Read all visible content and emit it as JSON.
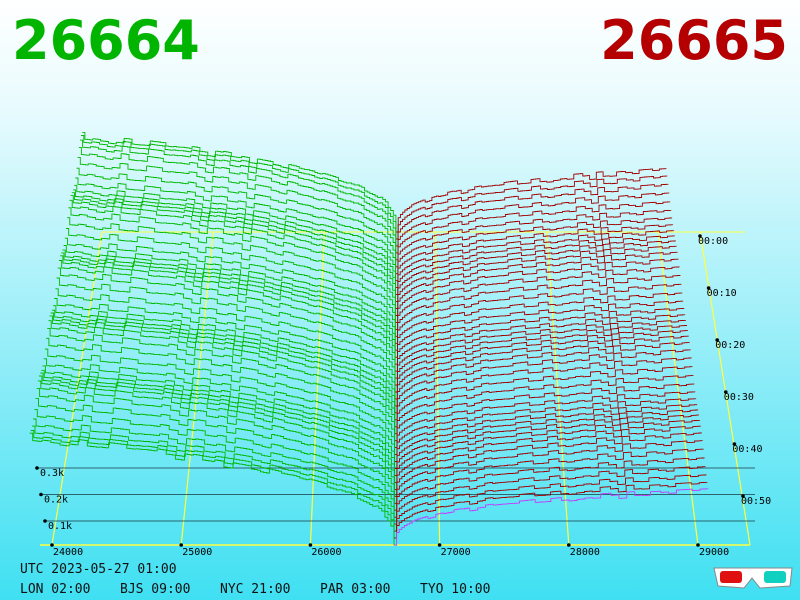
{
  "header": {
    "bid": "26664",
    "ask": "26665"
  },
  "price_axis": [
    "24000",
    "25000",
    "26000",
    "27000",
    "28000",
    "29000"
  ],
  "time_axis": [
    "00:00",
    "00:10",
    "00:20",
    "00:30",
    "00:40",
    "00:50"
  ],
  "depth_axis": [
    "0.3k",
    "0.2k",
    "0.1k"
  ],
  "footer": {
    "utc": "UTC 2023-05-27 01:00",
    "clocks": [
      "LON 02:00",
      "BJS 09:00",
      "NYC 21:00",
      "PAR 03:00",
      "TYO 10:00"
    ]
  }
}
